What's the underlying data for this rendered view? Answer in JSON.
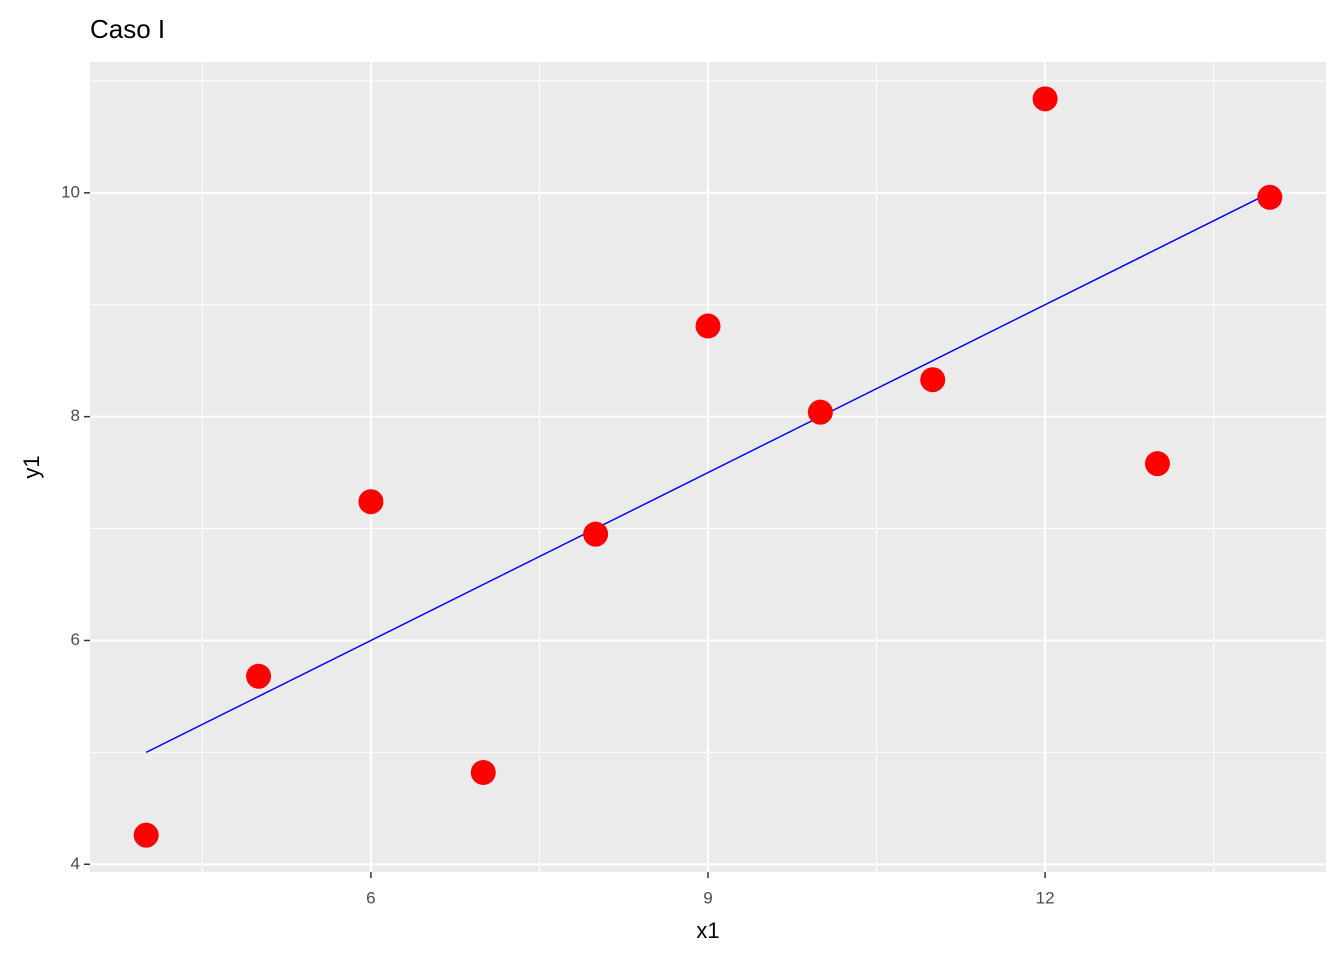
{
  "chart_data": {
    "type": "scatter",
    "title": "Caso I",
    "x_label": "x1",
    "y_label": "y1",
    "series": [
      {
        "name": "y1",
        "color": "#ff0000",
        "x": [
          10,
          8,
          13,
          9,
          11,
          14,
          6,
          4,
          12,
          7,
          5
        ],
        "values": [
          8.04,
          6.95,
          7.58,
          8.81,
          8.33,
          9.96,
          7.24,
          4.26,
          10.84,
          4.82,
          5.68
        ]
      }
    ],
    "fit": {
      "color": "#0000ff",
      "x": [
        4,
        14
      ],
      "values": [
        5,
        10
      ]
    },
    "xlim": [
      3.5,
      14.5
    ],
    "ylim": [
      3.931,
      11.169
    ],
    "xticks": [
      6,
      9,
      12
    ],
    "yticks": [
      4,
      6,
      8,
      10
    ],
    "xminor": [
      4.5,
      7.5,
      10.5,
      13.5
    ],
    "yminor": [
      5,
      7,
      9,
      11
    ],
    "grid": true
  }
}
